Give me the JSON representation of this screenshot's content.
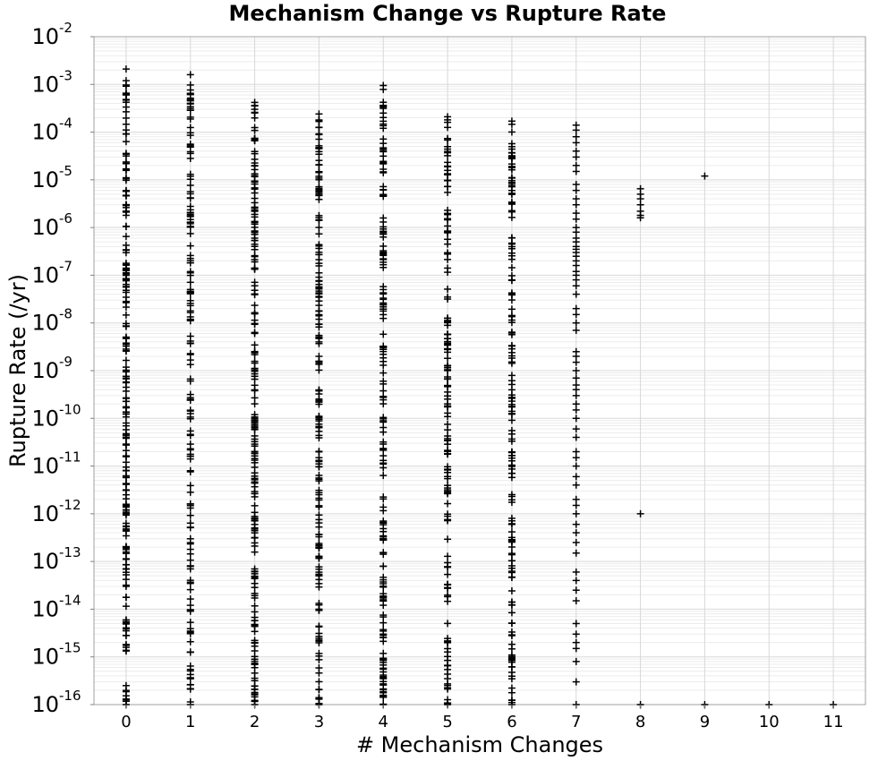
{
  "chart_data": {
    "type": "scatter",
    "title": "Mechanism Change vs Rupture Rate",
    "xlabel": "# Mechanism Changes",
    "ylabel": "Rupture Rate (/yr)",
    "xlim": [
      -0.5,
      11.5
    ],
    "ylim": [
      1e-16,
      0.01
    ],
    "y_scale": "log",
    "grid": true,
    "legend": "none",
    "marker": "plus",
    "marker_color": "#000000",
    "x_ticks": [
      "0",
      "1",
      "2",
      "3",
      "4",
      "5",
      "6",
      "7",
      "8",
      "9",
      "10",
      "11"
    ],
    "y_ticks": [
      {
        "base": "10",
        "exp": "-16",
        "value": 1e-16
      },
      {
        "base": "10",
        "exp": "-15",
        "value": 1e-15
      },
      {
        "base": "10",
        "exp": "-14",
        "value": 1e-14
      },
      {
        "base": "10",
        "exp": "-13",
        "value": 1e-13
      },
      {
        "base": "10",
        "exp": "-12",
        "value": 1e-12
      },
      {
        "base": "10",
        "exp": "-11",
        "value": 1e-11
      },
      {
        "base": "10",
        "exp": "-10",
        "value": 1e-10
      },
      {
        "base": "10",
        "exp": "-9",
        "value": 1e-09
      },
      {
        "base": "10",
        "exp": "-8",
        "value": 1e-08
      },
      {
        "base": "10",
        "exp": "-7",
        "value": 1e-07
      },
      {
        "base": "10",
        "exp": "-6",
        "value": 1e-06
      },
      {
        "base": "10",
        "exp": "-5",
        "value": 1e-05
      },
      {
        "base": "10",
        "exp": "-4",
        "value": 0.0001
      },
      {
        "base": "10",
        "exp": "-3",
        "value": 0.001
      },
      {
        "base": "10",
        "exp": "-2",
        "value": 0.01
      }
    ],
    "series": [
      {
        "x": 0,
        "points": 200,
        "max": 0.0021,
        "min": 1e-16
      },
      {
        "x": 1,
        "points": 150,
        "max": 0.0016,
        "min": 1e-16
      },
      {
        "x": 2,
        "points": 190,
        "max": 0.00042,
        "min": 1e-16
      },
      {
        "x": 3,
        "points": 170,
        "max": 0.00024,
        "min": 1e-16
      },
      {
        "x": 4,
        "points": 170,
        "max": 0.00095,
        "min": 1e-16
      },
      {
        "x": 5,
        "points": 140,
        "max": 0.00021,
        "min": 1e-16
      },
      {
        "x": 6,
        "points": 150,
        "max": 0.00017,
        "min": 1e-16
      },
      {
        "x": 7,
        "values": [
          0.00014,
          0.00011,
          8e-05,
          6e-05,
          4e-05,
          3e-05,
          2e-05,
          1.5e-05,
          8e-06,
          6e-06,
          4e-06,
          3e-06,
          2e-06,
          1.5e-06,
          1e-06,
          8e-07,
          6e-07,
          5e-07,
          4e-07,
          3.5e-07,
          3e-07,
          2.5e-07,
          2e-07,
          1.6e-07,
          1.2e-07,
          1e-07,
          8e-08,
          6e-08,
          4e-08,
          2e-08,
          1.5e-08,
          1e-08,
          7e-09,
          2.5e-09,
          2e-09,
          1.5e-09,
          1e-09,
          7e-10,
          5e-10,
          4e-10,
          3e-10,
          2e-10,
          1.5e-10,
          1e-10,
          6e-11,
          4e-11,
          2e-11,
          1.5e-11,
          1e-11,
          6e-12,
          4e-12,
          2e-12,
          1.5e-12,
          1e-12,
          6e-13,
          4e-13,
          2.5e-13,
          1.5e-13,
          6e-14,
          4e-14,
          2.5e-14,
          1.5e-14,
          5e-15,
          3e-15,
          2e-15,
          1.5e-15,
          8e-16,
          3e-16,
          1e-16
        ]
      },
      {
        "x": 8,
        "values": [
          6.5e-06,
          5e-06,
          4e-06,
          3e-06,
          2.2e-06,
          1.8e-06,
          1.6e-06,
          1e-12,
          1e-16
        ]
      },
      {
        "x": 9,
        "values": [
          1.2e-05,
          1e-16
        ]
      },
      {
        "x": 10,
        "values": [
          1e-16
        ]
      },
      {
        "x": 11,
        "values": [
          1e-16
        ]
      }
    ]
  }
}
